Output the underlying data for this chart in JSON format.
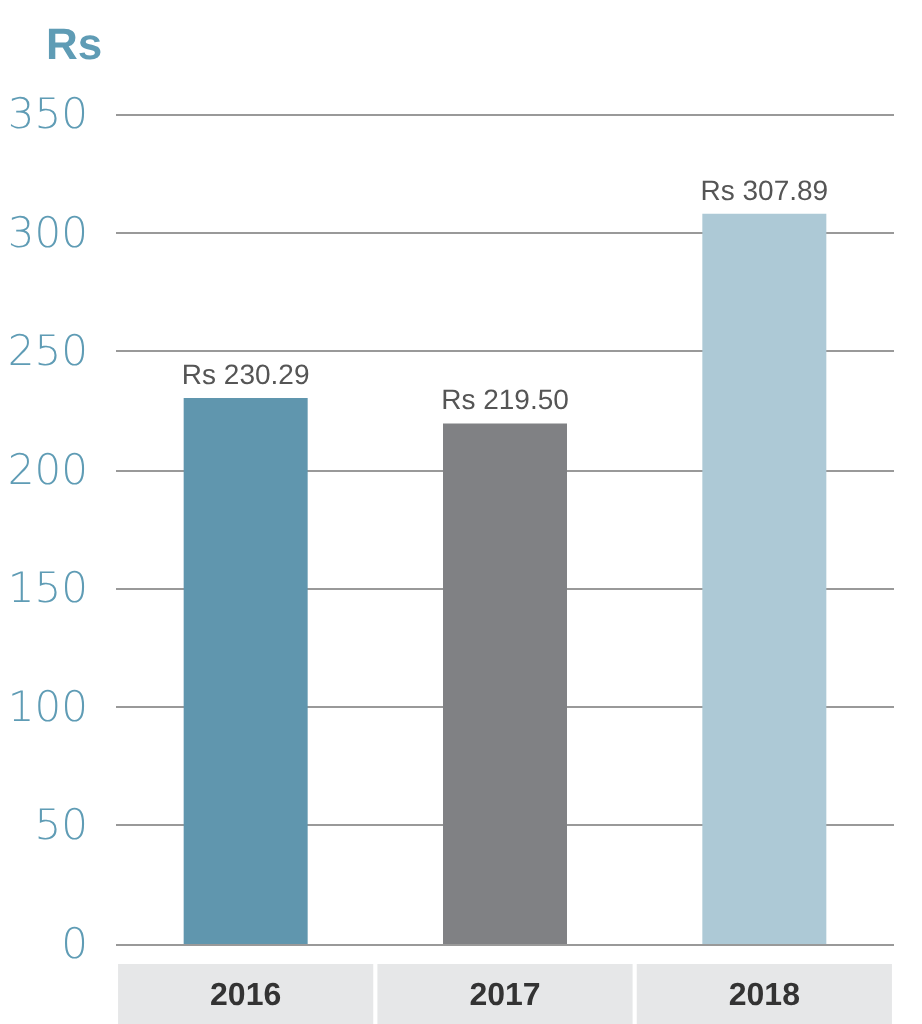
{
  "chart_data": {
    "type": "bar",
    "ylabel": "Rs",
    "categories": [
      "2016",
      "2017",
      "2018"
    ],
    "values": [
      230.29,
      219.5,
      307.89
    ],
    "colors": [
      "#6096ae",
      "#808184",
      "#adc9d6"
    ],
    "value_labels": [
      "Rs 230.29",
      "Rs 219.50",
      "Rs 307.89"
    ],
    "ylim": [
      0,
      350
    ],
    "yticks": [
      0,
      50,
      100,
      150,
      200,
      250,
      300,
      350
    ],
    "grid": "y"
  }
}
